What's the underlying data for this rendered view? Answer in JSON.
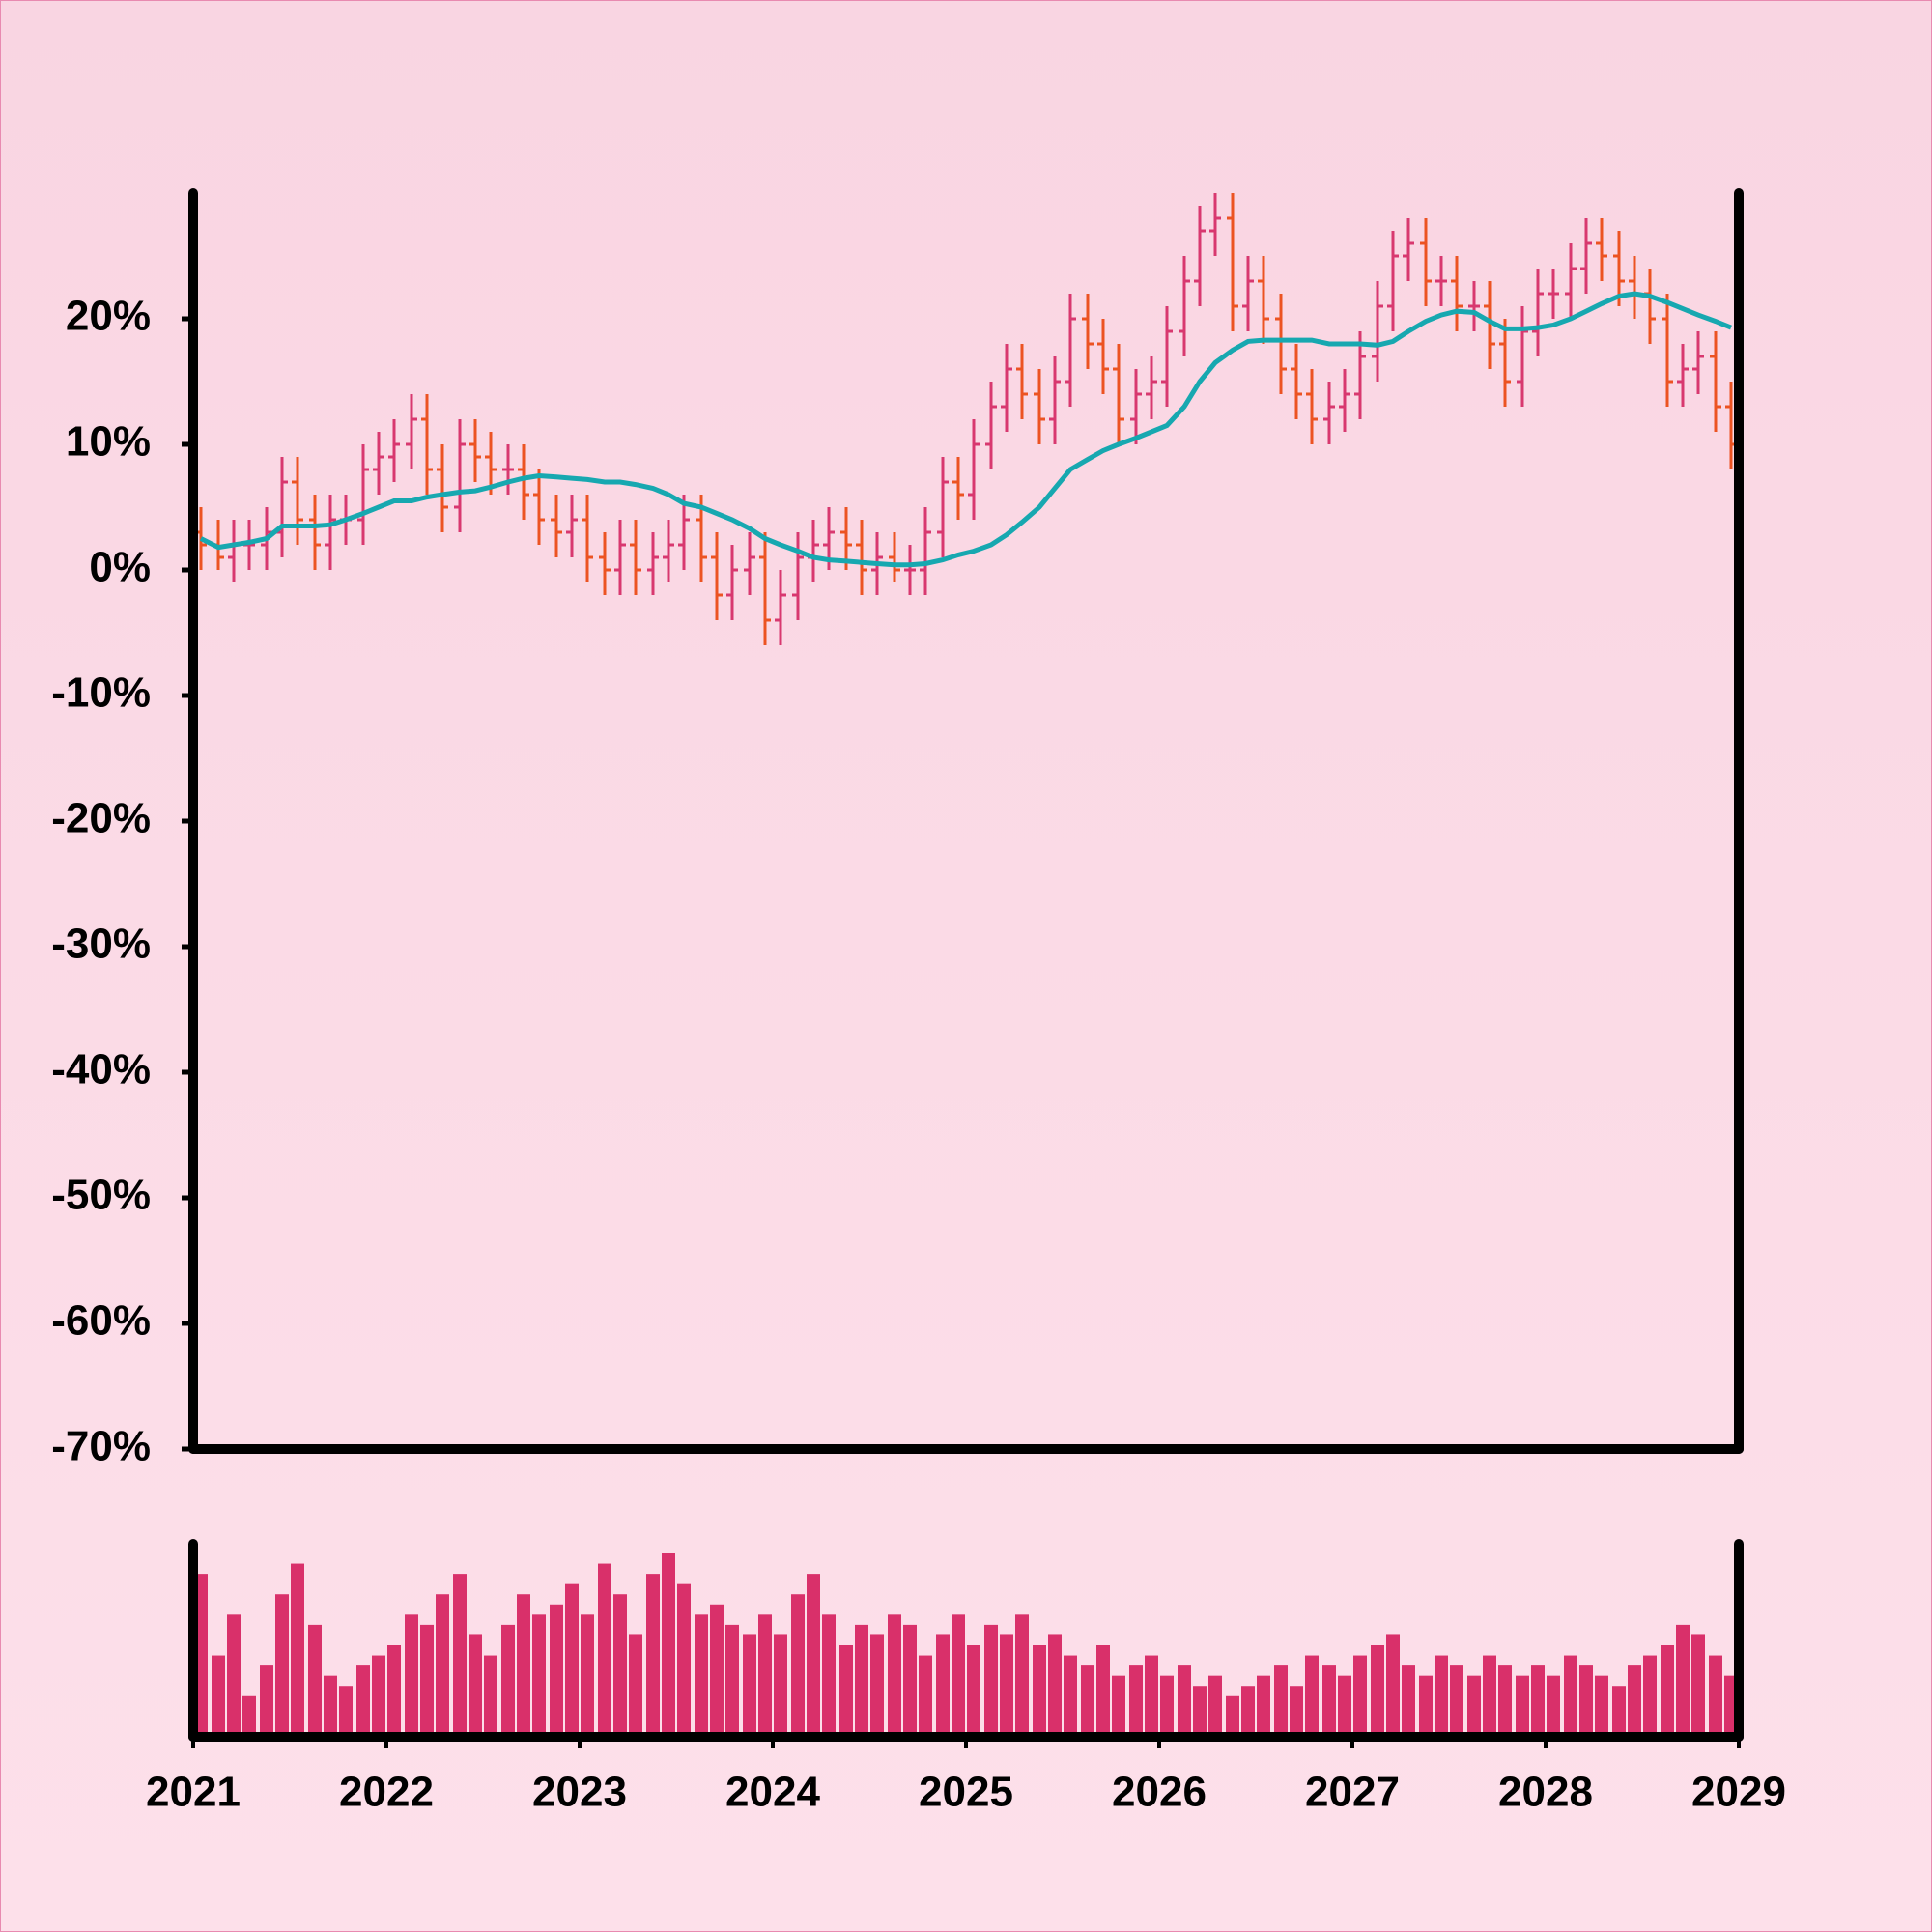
{
  "chart_data": {
    "type": "ohlc",
    "x": [
      2021.04,
      2021.13,
      2021.21,
      2021.29,
      2021.38,
      2021.46,
      2021.54,
      2021.63,
      2021.71,
      2021.79,
      2021.88,
      2021.96,
      2022.04,
      2022.13,
      2022.21,
      2022.29,
      2022.38,
      2022.46,
      2022.54,
      2022.63,
      2022.71,
      2022.79,
      2022.88,
      2022.96,
      2023.04,
      2023.13,
      2023.21,
      2023.29,
      2023.38,
      2023.46,
      2023.54,
      2023.63,
      2023.71,
      2023.79,
      2023.88,
      2023.96,
      2024.04,
      2024.13,
      2024.21,
      2024.29,
      2024.38,
      2024.46,
      2024.54,
      2024.63,
      2024.71,
      2024.79,
      2024.88,
      2024.96,
      2025.04,
      2025.13,
      2025.21,
      2025.29,
      2025.38,
      2025.46,
      2025.54,
      2025.63,
      2025.71,
      2025.79,
      2025.88,
      2025.96,
      2026.04,
      2026.13,
      2026.21,
      2026.29,
      2026.38,
      2026.46,
      2026.54,
      2026.63,
      2026.71,
      2026.79,
      2026.88,
      2026.96,
      2027.04,
      2027.13,
      2027.21,
      2027.29,
      2027.38,
      2027.46,
      2027.54,
      2027.63,
      2027.71,
      2027.79,
      2027.88,
      2027.96,
      2028.04,
      2028.13,
      2028.21,
      2028.29,
      2028.38,
      2028.46,
      2028.54,
      2028.63,
      2028.71,
      2028.79,
      2028.88,
      2028.96
    ],
    "open": [
      3,
      2,
      1,
      2,
      2,
      3,
      7,
      4,
      2,
      4,
      4,
      8,
      9,
      10,
      12,
      8,
      5,
      10,
      9,
      8,
      8,
      6,
      4,
      3,
      4,
      1,
      0,
      2,
      0,
      1,
      2,
      4,
      1,
      -2,
      0,
      1,
      -4,
      -2,
      1,
      2,
      3,
      2,
      0,
      1,
      0,
      0,
      3,
      7,
      6,
      10,
      13,
      16,
      14,
      12,
      15,
      20,
      18,
      16,
      12,
      14,
      15,
      19,
      23,
      27,
      28,
      21,
      23,
      20,
      16,
      14,
      12,
      13,
      14,
      17,
      21,
      25,
      26,
      23,
      23,
      21,
      21,
      18,
      15,
      19,
      22,
      22,
      24,
      26,
      25,
      23,
      22,
      20,
      15,
      16,
      17,
      13
    ],
    "high": [
      5,
      4,
      4,
      4,
      5,
      9,
      9,
      6,
      6,
      6,
      10,
      11,
      12,
      14,
      14,
      10,
      12,
      12,
      11,
      10,
      10,
      8,
      6,
      6,
      6,
      3,
      4,
      4,
      3,
      4,
      6,
      6,
      3,
      2,
      3,
      3,
      0,
      3,
      4,
      5,
      5,
      4,
      3,
      3,
      2,
      5,
      9,
      9,
      12,
      15,
      18,
      18,
      16,
      17,
      22,
      22,
      20,
      18,
      16,
      17,
      21,
      25,
      29,
      30,
      30,
      25,
      25,
      22,
      18,
      16,
      15,
      16,
      19,
      23,
      27,
      28,
      28,
      25,
      25,
      23,
      23,
      20,
      21,
      24,
      24,
      26,
      28,
      28,
      27,
      25,
      24,
      22,
      18,
      19,
      19,
      15
    ],
    "low": [
      0,
      0,
      -1,
      0,
      0,
      1,
      2,
      0,
      0,
      2,
      2,
      6,
      7,
      8,
      6,
      3,
      3,
      7,
      6,
      6,
      4,
      2,
      1,
      1,
      -1,
      -2,
      -2,
      -2,
      -2,
      -1,
      0,
      -1,
      -4,
      -4,
      -2,
      -6,
      -6,
      -4,
      -1,
      0,
      0,
      -2,
      -2,
      -1,
      -2,
      -2,
      1,
      4,
      4,
      8,
      11,
      12,
      10,
      10,
      13,
      16,
      14,
      10,
      10,
      12,
      13,
      17,
      21,
      25,
      19,
      19,
      18,
      14,
      12,
      10,
      10,
      11,
      12,
      15,
      19,
      23,
      21,
      21,
      19,
      19,
      16,
      13,
      13,
      17,
      20,
      20,
      22,
      23,
      21,
      20,
      18,
      13,
      13,
      14,
      11,
      8
    ],
    "close": [
      2,
      1,
      2,
      2,
      3,
      7,
      4,
      2,
      4,
      4,
      8,
      9,
      10,
      12,
      8,
      5,
      10,
      9,
      8,
      8,
      6,
      4,
      3,
      4,
      1,
      0,
      2,
      0,
      1,
      2,
      4,
      1,
      -2,
      0,
      1,
      -4,
      -2,
      1,
      2,
      3,
      2,
      0,
      1,
      0,
      0,
      3,
      7,
      6,
      10,
      13,
      16,
      14,
      12,
      15,
      20,
      18,
      16,
      12,
      14,
      15,
      19,
      23,
      27,
      28,
      21,
      23,
      20,
      16,
      14,
      12,
      13,
      14,
      17,
      21,
      25,
      26,
      23,
      23,
      21,
      21,
      18,
      15,
      19,
      22,
      22,
      24,
      26,
      25,
      23,
      22,
      20,
      15,
      16,
      17,
      13,
      10
    ],
    "up_color": "#d8386f",
    "down_color": "#ec5322",
    "moving_average": {
      "color": "#17a8b0",
      "values": [
        2.5,
        1.8,
        2,
        2.2,
        2.5,
        3.5,
        3.5,
        3.5,
        3.6,
        4,
        4.5,
        5,
        5.5,
        5.5,
        5.8,
        6,
        6.2,
        6.3,
        6.6,
        7,
        7.3,
        7.5,
        7.4,
        7.3,
        7.2,
        7,
        7,
        6.8,
        6.5,
        6,
        5.3,
        5,
        4.5,
        4,
        3.3,
        2.5,
        2,
        1.5,
        1,
        0.8,
        0.7,
        0.6,
        0.5,
        0.4,
        0.4,
        0.5,
        0.8,
        1.2,
        1.5,
        2,
        2.8,
        3.8,
        5,
        6.5,
        8,
        8.8,
        9.5,
        10,
        10.5,
        11,
        11.5,
        13,
        15,
        16.5,
        17.5,
        18.2,
        18.3,
        18.3,
        18.3,
        18.3,
        18,
        18,
        18,
        17.9,
        18.2,
        19,
        19.8,
        20.3,
        20.6,
        20.5,
        19.8,
        19.2,
        19.2,
        19.3,
        19.5,
        20,
        20.6,
        21.2,
        21.8,
        22,
        21.8,
        21.3,
        20.8,
        20.3,
        19.8,
        19.3
      ]
    },
    "volume": {
      "color": "#d9306a",
      "values": [
        80,
        40,
        60,
        20,
        35,
        70,
        85,
        55,
        30,
        25,
        35,
        40,
        45,
        60,
        55,
        70,
        80,
        50,
        40,
        55,
        70,
        60,
        65,
        75,
        60,
        85,
        70,
        50,
        80,
        90,
        75,
        60,
        65,
        55,
        50,
        60,
        50,
        70,
        80,
        60,
        45,
        55,
        50,
        60,
        55,
        40,
        50,
        60,
        45,
        55,
        50,
        60,
        45,
        50,
        40,
        35,
        45,
        30,
        35,
        40,
        30,
        35,
        25,
        30,
        20,
        25,
        30,
        35,
        25,
        40,
        35,
        30,
        40,
        45,
        50,
        35,
        30,
        40,
        35,
        30,
        40,
        35,
        30,
        35,
        30,
        40,
        35,
        30,
        25,
        35,
        40,
        45,
        55,
        50,
        40,
        30
      ]
    },
    "xlim": [
      2021,
      2029
    ],
    "xticks": [
      2021,
      2022,
      2023,
      2024,
      2025,
      2026,
      2027,
      2028,
      2029
    ],
    "ylim": [
      -70,
      30
    ],
    "yticks": [
      {
        "value": -70,
        "label": "-70%"
      },
      {
        "value": -60,
        "label": "-60%"
      },
      {
        "value": -50,
        "label": "-50%"
      },
      {
        "value": -40,
        "label": "-40%"
      },
      {
        "value": -30,
        "label": "-30%"
      },
      {
        "value": -20,
        "label": "-20%"
      },
      {
        "value": -10,
        "label": "-10%"
      },
      {
        "value": 0,
        "label": "0%"
      },
      {
        "value": 10,
        "label": "10%"
      },
      {
        "value": 20,
        "label": "20%"
      }
    ]
  }
}
